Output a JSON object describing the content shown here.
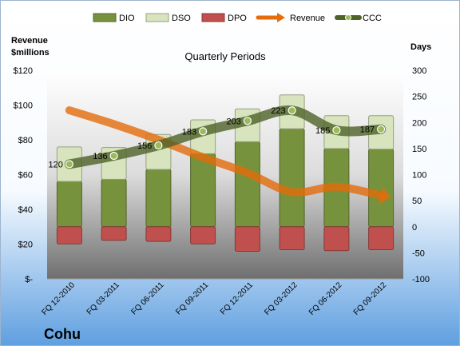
{
  "company": "Cohu",
  "chart_data": {
    "type": "bar",
    "title": "Quarterly Periods",
    "y_left_label": [
      "Revenue",
      "$millions"
    ],
    "y_right_label": "Days",
    "categories": [
      "FQ 12-2010",
      "FQ 03-2011",
      "FQ 06-2011",
      "FQ 09-2011",
      "FQ 12-2011",
      "FQ 03-2012",
      "FQ 06-2012",
      "FQ 09-2012"
    ],
    "left_axis": {
      "min": 0,
      "max": 120,
      "step": 20,
      "tick_labels": [
        "$-",
        "$20",
        "$40",
        "$60",
        "$80",
        "$100",
        "$120"
      ]
    },
    "right_axis": {
      "min": -100,
      "max": 300,
      "step": 50,
      "tick_labels": [
        "-100",
        "-50",
        "0",
        "50",
        "100",
        "150",
        "200",
        "250",
        "300"
      ]
    },
    "series": [
      {
        "name": "DIO",
        "kind": "stacked-bar",
        "axis": "right",
        "color": "#76923c",
        "values": [
          87,
          91,
          110,
          140,
          163,
          188,
          150,
          149
        ]
      },
      {
        "name": "DSO",
        "kind": "stacked-bar",
        "axis": "right",
        "color": "#d7e4bd",
        "values": [
          66,
          61,
          67,
          65,
          63,
          65,
          63,
          64
        ]
      },
      {
        "name": "DPO",
        "kind": "stacked-bar",
        "axis": "right",
        "color": "#c0504d",
        "values": [
          -33,
          -26,
          -28,
          -33,
          -47,
          -44,
          -46,
          -44
        ]
      },
      {
        "name": "Revenue",
        "kind": "line",
        "axis": "left",
        "color": "#e46c0a",
        "values": [
          97,
          89,
          80,
          70,
          61,
          50,
          53,
          48
        ]
      },
      {
        "name": "CCC",
        "kind": "line",
        "axis": "right",
        "color": "#4f6228",
        "values": [
          120,
          136,
          156,
          183,
          203,
          223,
          185,
          187
        ]
      }
    ],
    "data_labels": [
      "120",
      "136",
      "156",
      "183",
      "203",
      "223",
      "185",
      "187"
    ],
    "legend_position": "top",
    "grid": false
  }
}
